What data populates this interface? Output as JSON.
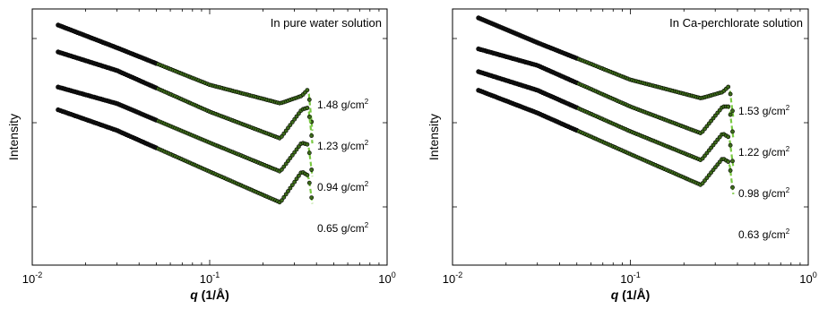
{
  "chart_data": [
    {
      "type": "scatter",
      "title": "In pure water solution",
      "xlabel_var": "q",
      "xlabel_unit": "(1/Å)",
      "ylabel": "Intensity",
      "x_scale": "log",
      "y_scale": "log",
      "xlim": [
        0.01,
        1
      ],
      "x_ticks": [
        {
          "base": "10",
          "exp": "-2"
        },
        {
          "base": "10",
          "exp": "-1"
        },
        {
          "base": "10",
          "exp": "0"
        }
      ],
      "grid": false,
      "fit_line_color": "#7ac943",
      "marker_color": "#111111",
      "series": [
        {
          "label": "1.48 g/cm",
          "exp": "2",
          "values": [
            {
              "q": 0.014,
              "rel": 0.0
            },
            {
              "q": 0.03,
              "rel": -0.55
            },
            {
              "q": 0.1,
              "rel": -1.45
            },
            {
              "q": 0.25,
              "rel": -1.9
            },
            {
              "q": 0.33,
              "rel": -1.72
            },
            {
              "q": 0.36,
              "rel": -1.55
            },
            {
              "q": 0.38,
              "rel": -2.6
            }
          ]
        },
        {
          "label": "1.23 g/cm",
          "exp": "2",
          "values": [
            {
              "q": 0.014,
              "rel": -0.5
            },
            {
              "q": 0.03,
              "rel": -0.95
            },
            {
              "q": 0.1,
              "rel": -1.95
            },
            {
              "q": 0.25,
              "rel": -2.6
            },
            {
              "q": 0.33,
              "rel": -1.9
            },
            {
              "q": 0.36,
              "rel": -1.85
            },
            {
              "q": 0.38,
              "rel": -2.75
            }
          ]
        },
        {
          "label": "0.94 g/cm",
          "exp": "2",
          "values": [
            {
              "q": 0.014,
              "rel": -1.2
            },
            {
              "q": 0.03,
              "rel": -1.6
            },
            {
              "q": 0.1,
              "rel": -2.55
            },
            {
              "q": 0.25,
              "rel": -3.25
            },
            {
              "q": 0.33,
              "rel": -2.55
            },
            {
              "q": 0.36,
              "rel": -2.6
            },
            {
              "q": 0.38,
              "rel": -3.4
            }
          ]
        },
        {
          "label": "0.65 g/cm",
          "exp": "2",
          "values": [
            {
              "q": 0.014,
              "rel": -1.6
            },
            {
              "q": 0.03,
              "rel": -2.1
            },
            {
              "q": 0.1,
              "rel": -3.1
            },
            {
              "q": 0.25,
              "rel": -3.85
            },
            {
              "q": 0.33,
              "rel": -3.1
            },
            {
              "q": 0.36,
              "rel": -3.2
            },
            {
              "q": 0.38,
              "rel": -3.9
            }
          ]
        }
      ]
    },
    {
      "type": "scatter",
      "title": "In Ca-perchlorate solution",
      "xlabel_var": "q",
      "xlabel_unit": "(1/Å)",
      "ylabel": "Intensity",
      "x_scale": "log",
      "y_scale": "log",
      "xlim": [
        0.01,
        1
      ],
      "x_ticks": [
        {
          "base": "10",
          "exp": "-2"
        },
        {
          "base": "10",
          "exp": "-1"
        },
        {
          "base": "10",
          "exp": "0"
        }
      ],
      "grid": false,
      "fit_line_color": "#7ac943",
      "marker_color": "#111111",
      "series": [
        {
          "label": "1.53 g/cm",
          "exp": "2",
          "values": [
            {
              "q": 0.014,
              "rel": 0.0
            },
            {
              "q": 0.03,
              "rel": -0.6
            },
            {
              "q": 0.1,
              "rel": -1.5
            },
            {
              "q": 0.25,
              "rel": -1.95
            },
            {
              "q": 0.33,
              "rel": -1.8
            },
            {
              "q": 0.36,
              "rel": -1.65
            },
            {
              "q": 0.38,
              "rel": -2.45
            }
          ]
        },
        {
          "label": "1.22 g/cm",
          "exp": "2",
          "values": [
            {
              "q": 0.014,
              "rel": -0.6
            },
            {
              "q": 0.03,
              "rel": -1.0
            },
            {
              "q": 0.1,
              "rel": -2.0
            },
            {
              "q": 0.25,
              "rel": -2.65
            },
            {
              "q": 0.33,
              "rel": -2.0
            },
            {
              "q": 0.36,
              "rel": -2.0
            },
            {
              "q": 0.38,
              "rel": -2.8
            }
          ]
        },
        {
          "label": "0.98 g/cm",
          "exp": "2",
          "values": [
            {
              "q": 0.014,
              "rel": -1.0
            },
            {
              "q": 0.03,
              "rel": -1.45
            },
            {
              "q": 0.1,
              "rel": -2.45
            },
            {
              "q": 0.25,
              "rel": -3.15
            },
            {
              "q": 0.33,
              "rel": -2.5
            },
            {
              "q": 0.36,
              "rel": -2.6
            },
            {
              "q": 0.38,
              "rel": -3.35
            }
          ]
        },
        {
          "label": "0.63 g/cm",
          "exp": "2",
          "values": [
            {
              "q": 0.014,
              "rel": -1.3
            },
            {
              "q": 0.03,
              "rel": -1.85
            },
            {
              "q": 0.1,
              "rel": -2.85
            },
            {
              "q": 0.25,
              "rel": -3.6
            },
            {
              "q": 0.33,
              "rel": -2.95
            },
            {
              "q": 0.36,
              "rel": -3.05
            },
            {
              "q": 0.38,
              "rel": -3.85
            }
          ]
        }
      ]
    }
  ]
}
